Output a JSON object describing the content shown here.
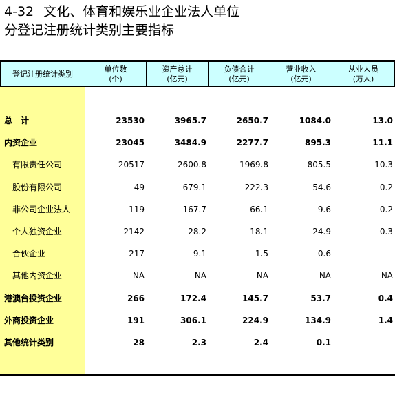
{
  "title": {
    "number": "4-32",
    "line1": "文化、体育和娱乐业企业法人单位",
    "line2": "分登记注册统计类别主要指标"
  },
  "columns": [
    {
      "label": "登记注册统计类别"
    },
    {
      "label": "单位数",
      "unit": "(个)"
    },
    {
      "label": "资产总计",
      "unit": "(亿元)"
    },
    {
      "label": "负债合计",
      "unit": "(亿元)"
    },
    {
      "label": "营业收入",
      "unit": "(亿元)"
    },
    {
      "label": "从业人员",
      "unit": "(万人)"
    }
  ],
  "rows": [
    {
      "label": "总　计",
      "bold": true,
      "values": [
        "23530",
        "3965.7",
        "2650.7",
        "1084.0",
        "13.0"
      ]
    },
    {
      "label": "内资企业",
      "bold": true,
      "values": [
        "23045",
        "3484.9",
        "2277.7",
        "895.3",
        "11.1"
      ]
    },
    {
      "label": "有限责任公司",
      "bold": false,
      "values": [
        "20517",
        "2600.8",
        "1969.8",
        "805.5",
        "10.3"
      ]
    },
    {
      "label": "股份有限公司",
      "bold": false,
      "values": [
        "49",
        "679.1",
        "222.3",
        "54.6",
        "0.2"
      ]
    },
    {
      "label": "非公司企业法人",
      "bold": false,
      "values": [
        "119",
        "167.7",
        "66.1",
        "9.6",
        "0.2"
      ]
    },
    {
      "label": "个人独资企业",
      "bold": false,
      "values": [
        "2142",
        "28.2",
        "18.1",
        "24.9",
        "0.3"
      ]
    },
    {
      "label": "合伙企业",
      "bold": false,
      "values": [
        "217",
        "9.1",
        "1.5",
        "0.6",
        ""
      ]
    },
    {
      "label": "其他内资企业",
      "bold": false,
      "values": [
        "NA",
        "NA",
        "NA",
        "NA",
        "NA"
      ]
    },
    {
      "label": "港澳台投资企业",
      "bold": true,
      "values": [
        "266",
        "172.4",
        "145.7",
        "53.7",
        "0.4"
      ]
    },
    {
      "label": "外商投资企业",
      "bold": true,
      "values": [
        "191",
        "306.1",
        "224.9",
        "134.9",
        "1.4"
      ]
    },
    {
      "label": "其他统计类别",
      "bold": true,
      "values": [
        "28",
        "2.3",
        "2.4",
        "0.1",
        ""
      ]
    }
  ]
}
